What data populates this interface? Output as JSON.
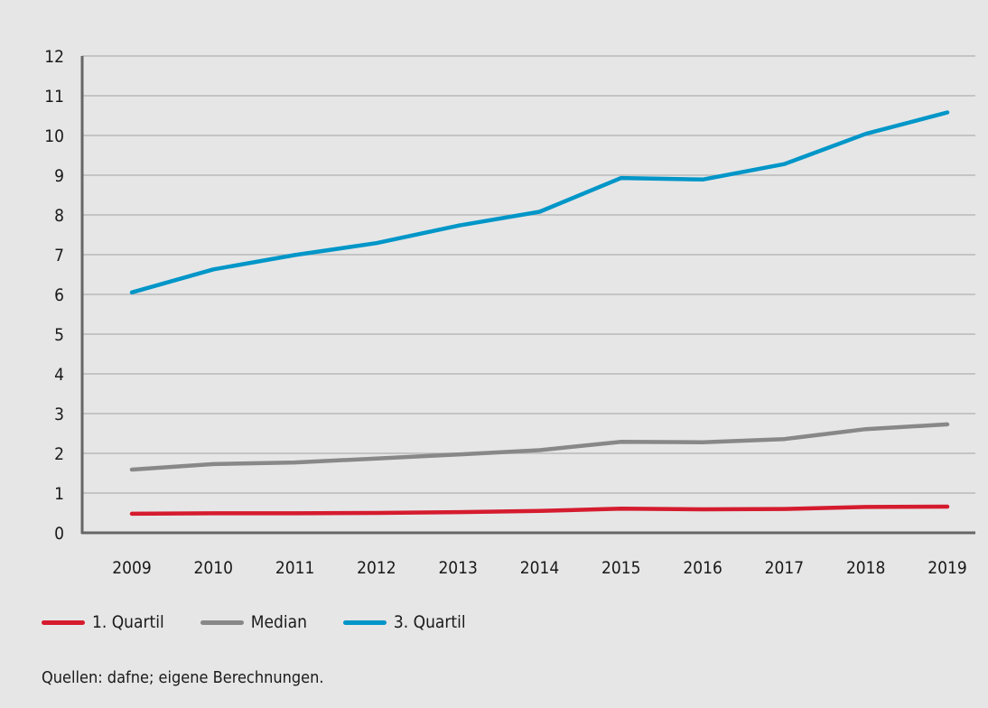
{
  "chart_data": {
    "type": "line",
    "x": [
      "2009",
      "2010",
      "2011",
      "2012",
      "2013",
      "2014",
      "2015",
      "2016",
      "2017",
      "2018",
      "2019"
    ],
    "ylim": [
      0,
      12
    ],
    "yticks": [
      0,
      1,
      2,
      3,
      4,
      5,
      6,
      7,
      8,
      9,
      10,
      11,
      12
    ],
    "grid": true,
    "legend_position": "bottom-left",
    "series": [
      {
        "name": "1. Quartil",
        "color": "#d51b2e",
        "values": [
          0.48,
          0.49,
          0.49,
          0.5,
          0.52,
          0.55,
          0.61,
          0.59,
          0.6,
          0.65,
          0.66
        ]
      },
      {
        "name": "Median",
        "color": "#888888",
        "values": [
          1.59,
          1.73,
          1.77,
          1.87,
          1.97,
          2.08,
          2.29,
          2.28,
          2.36,
          2.61,
          2.73
        ]
      },
      {
        "name": "3. Quartil",
        "color": "#0096c8",
        "values": [
          6.05,
          6.63,
          6.99,
          7.29,
          7.73,
          8.08,
          8.93,
          8.89,
          9.28,
          10.04,
          10.58
        ]
      }
    ]
  },
  "source_note": "Quellen: dafne; eigene Berechnungen."
}
